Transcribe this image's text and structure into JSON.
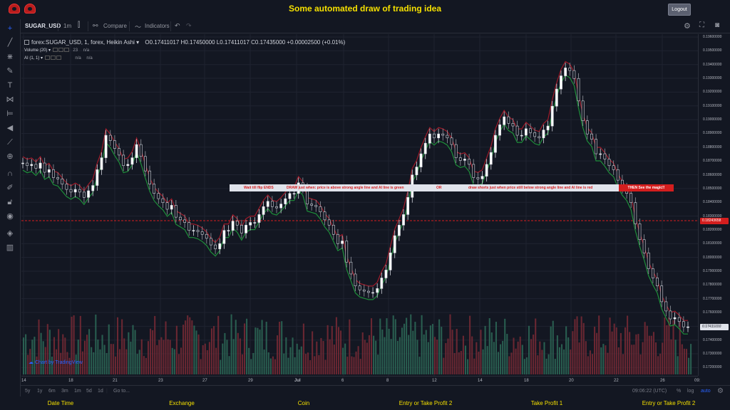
{
  "page": {
    "title": "Some automated draw of trading idea",
    "logout_label": "Logout"
  },
  "toolbar": {
    "symbol": "SUGAR_USD",
    "interval": "1m",
    "compare_label": "Compare",
    "indicators_label": "Indicators"
  },
  "legend": {
    "main": "forex:SUGAR_USD, 1, forex, Heikin Ashi",
    "ohlc": "O0.17411017  H0.17450000  L0.17411017  C0.17435000  +0.00002500 (+0.01%)",
    "volume_label": "Volume (20)",
    "volume_value": "23",
    "volume_na": "n/a",
    "ai_label": "AI (1, 1)",
    "ai_na1": "n/a",
    "ai_na2": "n/a"
  },
  "watermark": "Chart by TradingView",
  "annotation": {
    "seg1": "Wait till flip ENDS",
    "seg2": "DRAW just when: price is above strong angle line and AI line is green",
    "seg3": "OR",
    "seg4": "draw shorts just when price still below strong angle line and AI line is red",
    "end": "THEN See the magic!!"
  },
  "price_axis": {
    "labels": [
      "0.19600000",
      "0.19500000",
      "0.19400000",
      "0.19300000",
      "0.19200000",
      "0.19100000",
      "0.19000000",
      "0.18900000",
      "0.18800000",
      "0.18700000",
      "0.18600000",
      "0.18500000",
      "0.18400000",
      "0.18300000",
      "0.18200000",
      "0.18100000",
      "0.18000000",
      "0.17900000",
      "0.17800000",
      "0.17700000",
      "0.17600000",
      "0.17500000",
      "0.17400000",
      "0.17300000",
      "0.17200000"
    ],
    "level_tag": "0.18243658",
    "current_tag": "0.17435000"
  },
  "time_axis": {
    "labels": [
      "14",
      "18",
      "21",
      "23",
      "27",
      "29",
      "Jul",
      "6",
      "8",
      "12",
      "14",
      "18",
      "20",
      "22",
      "26",
      "09:"
    ]
  },
  "bottombar": {
    "ranges": [
      "5y",
      "1y",
      "6m",
      "3m",
      "1m",
      "5d",
      "1d"
    ],
    "goto": "Go to...",
    "clock": "09:06:22 (UTC)",
    "percent": "%",
    "log": "log",
    "auto": "auto"
  },
  "footer": {
    "columns": [
      "Date Time",
      "Exchange",
      "Coin",
      "Entry or Take Profit 2",
      "Take Profit 1",
      "Entry or Take Profit 2"
    ]
  },
  "chart_data": {
    "type": "candlestick",
    "series_style": "Heikin Ashi",
    "ylim": [
      0.1715,
      0.1965
    ],
    "level_line": 0.18243658,
    "closes": [
      0.1868,
      0.1866,
      0.1867,
      0.1864,
      0.1868,
      0.1861,
      0.1863,
      0.1857,
      0.1856,
      0.1852,
      0.1848,
      0.1846,
      0.1848,
      0.1846,
      0.1842,
      0.1847,
      0.1851,
      0.1863,
      0.1872,
      0.1889,
      0.1885,
      0.1879,
      0.1874,
      0.1866,
      0.1867,
      0.1872,
      0.1882,
      0.1873,
      0.1862,
      0.1852,
      0.1845,
      0.1841,
      0.1838,
      0.1833,
      0.1836,
      0.1827,
      0.1825,
      0.1823,
      0.1817,
      0.1817,
      0.1816,
      0.1814,
      0.1811,
      0.1806,
      0.1803,
      0.1807,
      0.1817,
      0.1817,
      0.1824,
      0.1821,
      0.1815,
      0.1821,
      0.1823,
      0.1823,
      0.1829,
      0.1835,
      0.1839,
      0.1835,
      0.1834,
      0.1837,
      0.1841,
      0.1845,
      0.1845,
      0.1853,
      0.1849,
      0.1837,
      0.1836,
      0.1835,
      0.1831,
      0.1825,
      0.1821,
      0.1814,
      0.1807,
      0.1809,
      0.1793,
      0.1784,
      0.1775,
      0.1772,
      0.1771,
      0.177,
      0.177,
      0.1773,
      0.1781,
      0.1787,
      0.18,
      0.1813,
      0.1821,
      0.1829,
      0.1842,
      0.1859,
      0.1865,
      0.1875,
      0.1883,
      0.189,
      0.1887,
      0.189,
      0.1889,
      0.1887,
      0.1882,
      0.1872,
      0.187,
      0.1871,
      0.1867,
      0.1857,
      0.1856,
      0.1858,
      0.1867,
      0.1876,
      0.1889,
      0.1897,
      0.1903,
      0.1898,
      0.1896,
      0.1889,
      0.1889,
      0.1894,
      0.1891,
      0.1888,
      0.1887,
      0.1893,
      0.1896,
      0.1911,
      0.1924,
      0.1934,
      0.194,
      0.1938,
      0.1932,
      0.1915,
      0.19,
      0.189,
      0.1886,
      0.1875,
      0.1875,
      0.1871,
      0.1866,
      0.1863,
      0.1855,
      0.1849,
      0.1845,
      0.1838,
      0.1822,
      0.181,
      0.18,
      0.1788,
      0.1781,
      0.1775,
      0.1763,
      0.1756,
      0.175,
      0.1751,
      0.1748,
      0.1744,
      0.1744
    ]
  }
}
